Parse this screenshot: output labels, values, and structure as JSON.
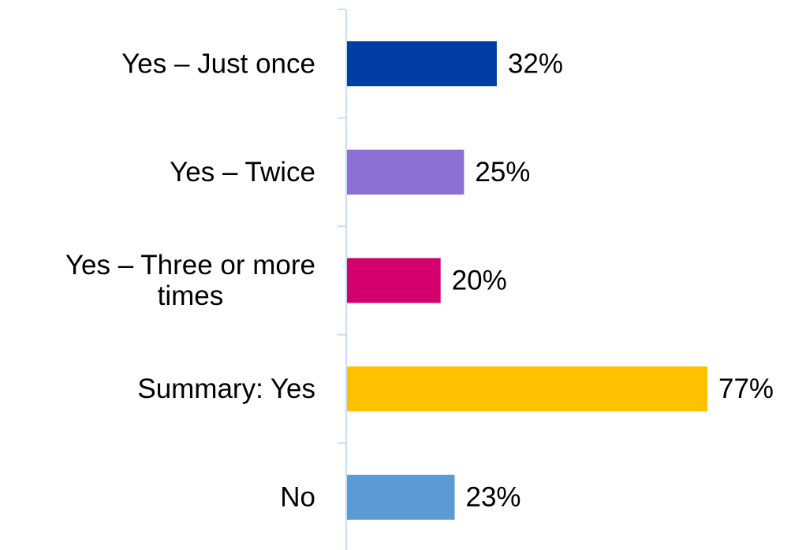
{
  "chart_data": {
    "type": "bar",
    "orientation": "horizontal",
    "categories": [
      [
        "Yes – Just once"
      ],
      [
        "Yes – Twice"
      ],
      [
        "Yes – Three or more",
        "times"
      ],
      [
        "Summary: Yes"
      ],
      [
        "No"
      ]
    ],
    "values": [
      32,
      25,
      20,
      77,
      23
    ],
    "value_labels": [
      "32%",
      "25%",
      "20%",
      "77%",
      "23%"
    ],
    "colors": [
      "#003da5",
      "#8e6fd3",
      "#d4006e",
      "#ffc000",
      "#5b9bd5"
    ],
    "axis_color": "#c5e0f5",
    "xlim": [
      0,
      100
    ],
    "grid": false,
    "legend": "none"
  }
}
